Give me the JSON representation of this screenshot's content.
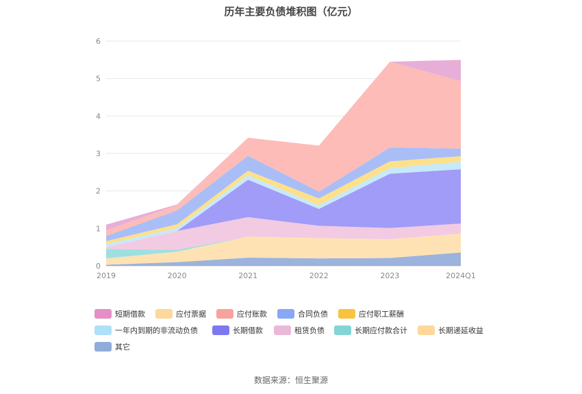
{
  "chart_data": {
    "type": "area",
    "stacked": true,
    "title": "历年主要负债堆积图（亿元）",
    "categories": [
      "2019",
      "2020",
      "2021",
      "2022",
      "2023",
      "2024Q1"
    ],
    "ylim": [
      0,
      6
    ],
    "yticks": [
      0,
      1,
      2,
      3,
      4,
      5,
      6
    ],
    "grid": true,
    "legend_position": "bottom",
    "series": [
      {
        "name": "其它",
        "color": "#9bb3dd",
        "values": [
          0.03,
          0.1,
          0.22,
          0.2,
          0.21,
          0.36
        ]
      },
      {
        "name": "长期递延收益",
        "color": "#ffe2b3",
        "values": [
          0.17,
          0.28,
          0.56,
          0.54,
          0.5,
          0.5
        ]
      },
      {
        "name": "长期应付款合计",
        "color": "#9ee0e0",
        "values": [
          0.25,
          0.05,
          0.0,
          0.0,
          0.0,
          0.0
        ]
      },
      {
        "name": "租赁负债",
        "color": "#f2cbe2",
        "values": [
          0.05,
          0.5,
          0.52,
          0.33,
          0.3,
          0.27
        ]
      },
      {
        "name": "长期借款",
        "color": "#a09cf7",
        "values": [
          0.0,
          0.0,
          1.0,
          0.45,
          1.45,
          1.45
        ]
      },
      {
        "name": "一年内到期的非流动负债",
        "color": "#c7e9fa",
        "values": [
          0.08,
          0.08,
          0.12,
          0.1,
          0.15,
          0.2
        ]
      },
      {
        "name": "应付职工薪酬",
        "color": "#fde08a",
        "values": [
          0.08,
          0.1,
          0.12,
          0.18,
          0.18,
          0.15
        ]
      },
      {
        "name": "合同负债",
        "color": "#a9bef7",
        "values": [
          0.14,
          0.37,
          0.4,
          0.18,
          0.37,
          0.2
        ]
      },
      {
        "name": "应付账款",
        "color": "#fdbcb7",
        "values": [
          0.15,
          0.14,
          0.48,
          1.23,
          2.29,
          1.8
        ]
      },
      {
        "name": "应付票据",
        "color": "#ffe2b3",
        "values": [
          0.0,
          0.0,
          0.0,
          0.0,
          0.0,
          0.0
        ]
      },
      {
        "name": "短期借款",
        "color": "#e7aed8",
        "values": [
          0.15,
          0.02,
          0.0,
          0.0,
          0.0,
          0.57
        ]
      }
    ],
    "legend": [
      {
        "name": "短期借款",
        "color": "#e48fc8"
      },
      {
        "name": "应付票据",
        "color": "#fdd89a"
      },
      {
        "name": "应付账款",
        "color": "#f9a39d"
      },
      {
        "name": "合同负债",
        "color": "#88a7f5"
      },
      {
        "name": "应付职工薪酬",
        "color": "#f9c340"
      },
      {
        "name": "一年内到期的非流动负债",
        "color": "#aee0f9"
      },
      {
        "name": "长期借款",
        "color": "#7d78f0"
      },
      {
        "name": "租赁负债",
        "color": "#ebb9d8"
      },
      {
        "name": "长期应付款合计",
        "color": "#83d4d6"
      },
      {
        "name": "长期递延收益",
        "color": "#fdd89a"
      },
      {
        "name": "其它",
        "color": "#90acd9"
      }
    ]
  },
  "footer": {
    "source": "数据来源：恒生聚源"
  }
}
